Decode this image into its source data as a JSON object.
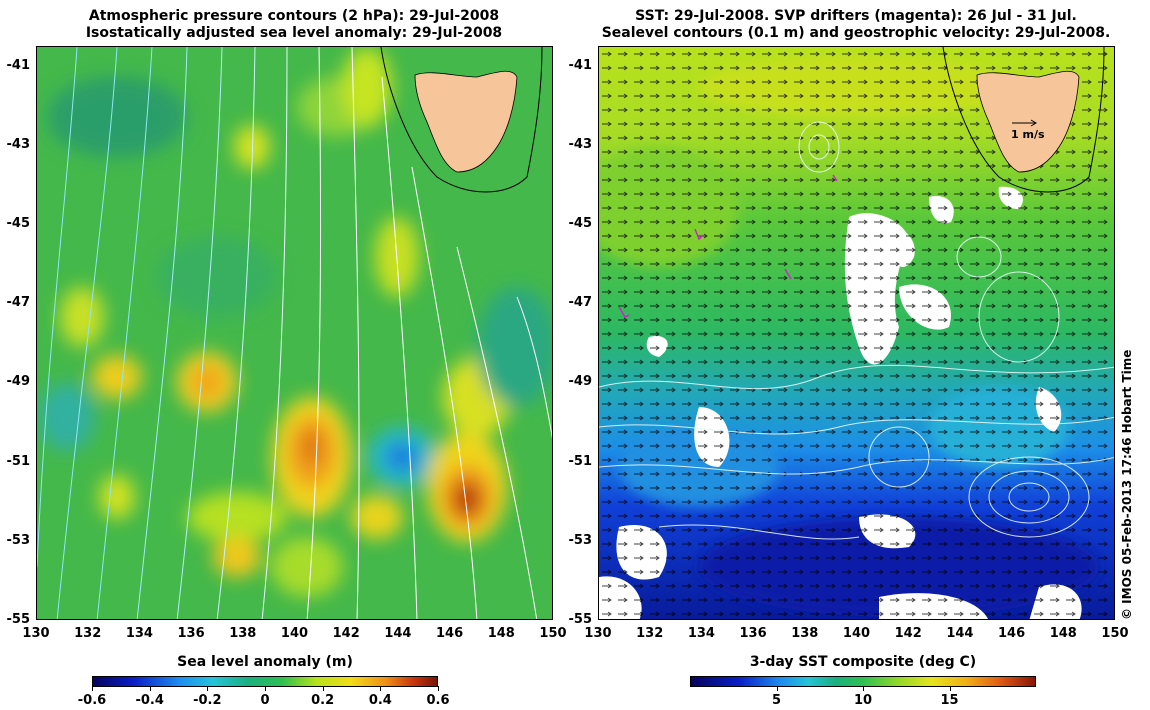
{
  "left_panel": {
    "title_line1": "Atmospheric pressure contours (2 hPa): 29-Jul-2008",
    "title_line2": "Isostatically adjusted sea level anomaly: 29-Jul-2008",
    "colorbar_title": "Sea level anomaly (m)",
    "colorbar_ticks": [
      "-0.6",
      "-0.4",
      "-0.2",
      "0",
      "0.2",
      "0.4",
      "0.6"
    ]
  },
  "right_panel": {
    "title_line1": "SST: 29-Jul-2008. SVP drifters (magenta): 26 Jul - 31 Jul.",
    "title_line2": "Sealevel contours (0.1 m) and geostrophic velocity: 29-Jul-2008.",
    "colorbar_title": "3-day SST composite (deg C)",
    "colorbar_ticks": [
      "5",
      "10",
      "15"
    ],
    "velocity_scale_label": "1 m/s"
  },
  "x_ticks": [
    "130",
    "132",
    "134",
    "136",
    "138",
    "140",
    "142",
    "144",
    "146",
    "148",
    "150"
  ],
  "y_ticks": [
    "-41",
    "-43",
    "-45",
    "-47",
    "-49",
    "-51",
    "-53",
    "-55"
  ],
  "credit": "© IMOS 05-Feb-2013 17:46 Hobart Time",
  "colors": {
    "land": "#f7c59a",
    "ssha_base": "#3fb84a",
    "sst_warm": "#b8e21c",
    "sst_cold": "#0a1fc8",
    "cloud": "#ffffff"
  }
}
